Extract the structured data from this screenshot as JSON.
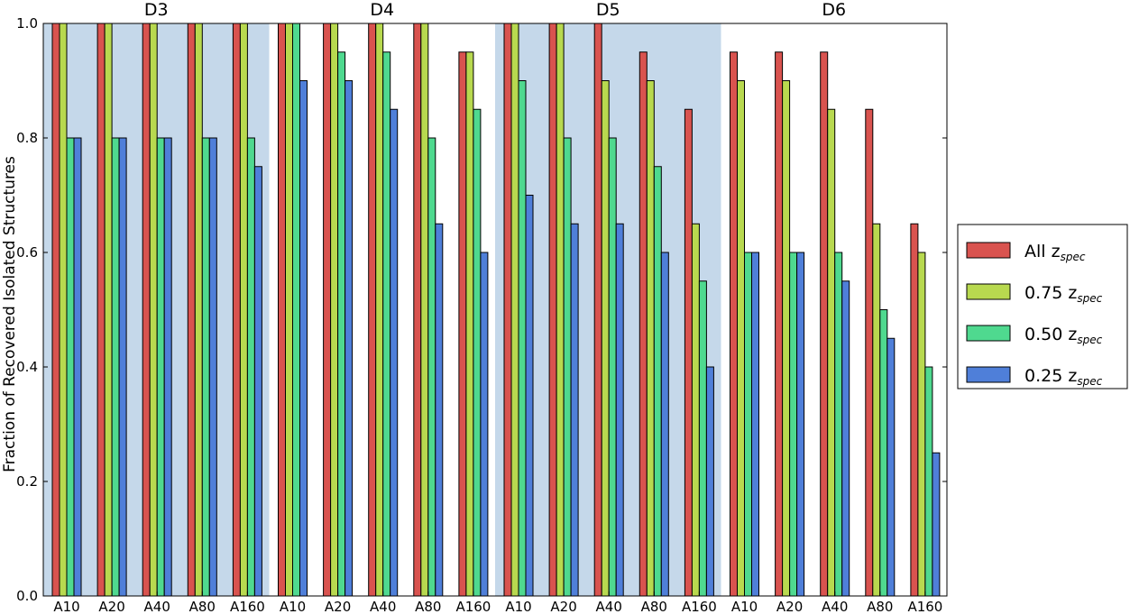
{
  "chart_data": {
    "type": "bar",
    "ylabel": "Fraction of Recovered Isolated Structures",
    "ylim": [
      0.0,
      1.0
    ],
    "yticks": [
      "0.0",
      "0.2",
      "0.4",
      "0.6",
      "0.8",
      "1.0"
    ],
    "groups": [
      {
        "label": "D3",
        "shaded": true
      },
      {
        "label": "D4",
        "shaded": false
      },
      {
        "label": "D5",
        "shaded": true
      },
      {
        "label": "D6",
        "shaded": false
      }
    ],
    "categories": [
      "A10",
      "A20",
      "A40",
      "A80",
      "A160",
      "A10",
      "A20",
      "A40",
      "A80",
      "A160",
      "A10",
      "A20",
      "A40",
      "A80",
      "A160",
      "A10",
      "A20",
      "A40",
      "A80",
      "A160"
    ],
    "series": [
      {
        "legend_main": "All z",
        "legend_sub": "spec",
        "color": "#d9534f",
        "values": [
          1.0,
          1.0,
          1.0,
          1.0,
          1.0,
          1.0,
          1.0,
          1.0,
          1.0,
          0.95,
          1.0,
          1.0,
          1.0,
          0.95,
          0.85,
          0.95,
          0.95,
          0.95,
          0.85,
          0.65
        ]
      },
      {
        "legend_main": "0.75 z",
        "legend_sub": "spec",
        "color": "#b8d94f",
        "values": [
          1.0,
          1.0,
          1.0,
          1.0,
          1.0,
          1.0,
          1.0,
          1.0,
          1.0,
          0.95,
          1.0,
          1.0,
          0.9,
          0.9,
          0.65,
          0.9,
          0.9,
          0.85,
          0.65,
          0.6
        ]
      },
      {
        "legend_main": "0.50 z",
        "legend_sub": "spec",
        "color": "#4fd98f",
        "values": [
          0.8,
          0.8,
          0.8,
          0.8,
          0.8,
          1.0,
          0.95,
          0.95,
          0.8,
          0.85,
          0.9,
          0.8,
          0.8,
          0.75,
          0.55,
          0.6,
          0.6,
          0.6,
          0.5,
          0.4
        ]
      },
      {
        "legend_main": "0.25 z",
        "legend_sub": "spec",
        "color": "#4f7fd9",
        "values": [
          0.8,
          0.8,
          0.8,
          0.8,
          0.75,
          0.9,
          0.9,
          0.85,
          0.65,
          0.6,
          0.7,
          0.65,
          0.65,
          0.6,
          0.4,
          0.6,
          0.6,
          0.55,
          0.45,
          0.25
        ]
      }
    ],
    "shade_color": "#c5d8ea",
    "legend_position": "right"
  }
}
